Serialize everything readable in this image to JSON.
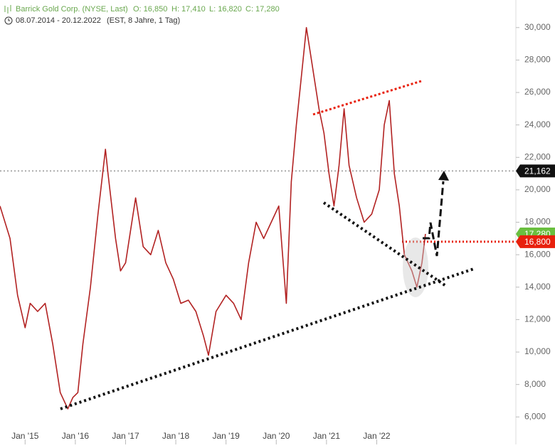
{
  "header": {
    "title": "Barrick Gold Corp. (NYSE, Last)",
    "open": "O: 16,850",
    "high": "H: 17,410",
    "low": "L: 16,820",
    "close": "C: 17,280",
    "range": "08.07.2014 - 20.12.2022",
    "info": "(EST, 8 Jahre, 1 Tag)"
  },
  "chart_data": {
    "type": "line",
    "x": [
      2014.5,
      2014.7,
      2014.85,
      2015.0,
      2015.1,
      2015.25,
      2015.4,
      2015.55,
      2015.7,
      2015.85,
      2015.95,
      2016.05,
      2016.15,
      2016.3,
      2016.45,
      2016.6,
      2016.65,
      2016.8,
      2016.9,
      2017.0,
      2017.1,
      2017.2,
      2017.35,
      2017.5,
      2017.65,
      2017.8,
      2017.95,
      2018.1,
      2018.25,
      2018.4,
      2018.55,
      2018.65,
      2018.8,
      2019.0,
      2019.15,
      2019.3,
      2019.45,
      2019.6,
      2019.75,
      2019.9,
      2020.05,
      2020.2,
      2020.3,
      2020.4,
      2020.5,
      2020.6,
      2020.7,
      2020.85,
      2020.95,
      2021.05,
      2021.15,
      2021.25,
      2021.35,
      2021.45,
      2021.6,
      2021.75,
      2021.9,
      2022.05,
      2022.15,
      2022.25,
      2022.35,
      2022.45,
      2022.55,
      2022.7,
      2022.8,
      2022.9,
      2022.97
    ],
    "series": [
      {
        "name": "Barrick Gold Corp.",
        "color": "#b22222",
        "values": [
          19000,
          17000,
          13500,
          11500,
          13000,
          12500,
          13000,
          10500,
          7500,
          6500,
          7200,
          7500,
          10500,
          14000,
          18500,
          22500,
          21000,
          17000,
          15000,
          15500,
          17500,
          19500,
          16500,
          16000,
          17500,
          15500,
          14500,
          13000,
          13200,
          12500,
          11000,
          9800,
          12500,
          13500,
          13000,
          12000,
          15500,
          18000,
          17000,
          18000,
          19000,
          13000,
          20500,
          24000,
          27000,
          30000,
          28000,
          25000,
          23500,
          21000,
          19000,
          21500,
          25000,
          21500,
          19500,
          18000,
          18500,
          20000,
          24000,
          25500,
          21000,
          19000,
          16000,
          15000,
          14000,
          15500,
          17280
        ]
      }
    ],
    "xlim": [
      2014.5,
      2024.77
    ],
    "ylim": [
      5400,
      31700
    ],
    "xticks": [
      {
        "value": 2015,
        "label": "Jan '15"
      },
      {
        "value": 2016,
        "label": "Jan '16"
      },
      {
        "value": 2017,
        "label": "Jan '17"
      },
      {
        "value": 2018,
        "label": "Jan '18"
      },
      {
        "value": 2019,
        "label": "Jan '19"
      },
      {
        "value": 2020,
        "label": "Jan '20"
      },
      {
        "value": 2021,
        "label": "Jan '21"
      },
      {
        "value": 2022,
        "label": "Jan '22"
      }
    ],
    "yticks": [
      {
        "value": 6000,
        "label": "6,000"
      },
      {
        "value": 8000,
        "label": "8,000"
      },
      {
        "value": 10000,
        "label": "10,000"
      },
      {
        "value": 12000,
        "label": "12,000"
      },
      {
        "value": 14000,
        "label": "14,000"
      },
      {
        "value": 16000,
        "label": "16,000"
      },
      {
        "value": 18000,
        "label": "18,000"
      },
      {
        "value": 20000,
        "label": "20,000"
      },
      {
        "value": 22000,
        "label": "22,000"
      },
      {
        "value": 24000,
        "label": "24,000"
      },
      {
        "value": 26000,
        "label": "26,000"
      },
      {
        "value": 28000,
        "label": "28,000"
      },
      {
        "value": 30000,
        "label": "30,000"
      }
    ],
    "price_markers": [
      {
        "value": 21162,
        "label": "21,162",
        "color": "#111111",
        "line_color": "#aaaaaa"
      },
      {
        "value": 17280,
        "label": "17,280",
        "color": "#6abf3f"
      },
      {
        "value": 16800,
        "label": "16,800",
        "color": "#e8200c",
        "line_color": "#e8200c"
      }
    ]
  }
}
